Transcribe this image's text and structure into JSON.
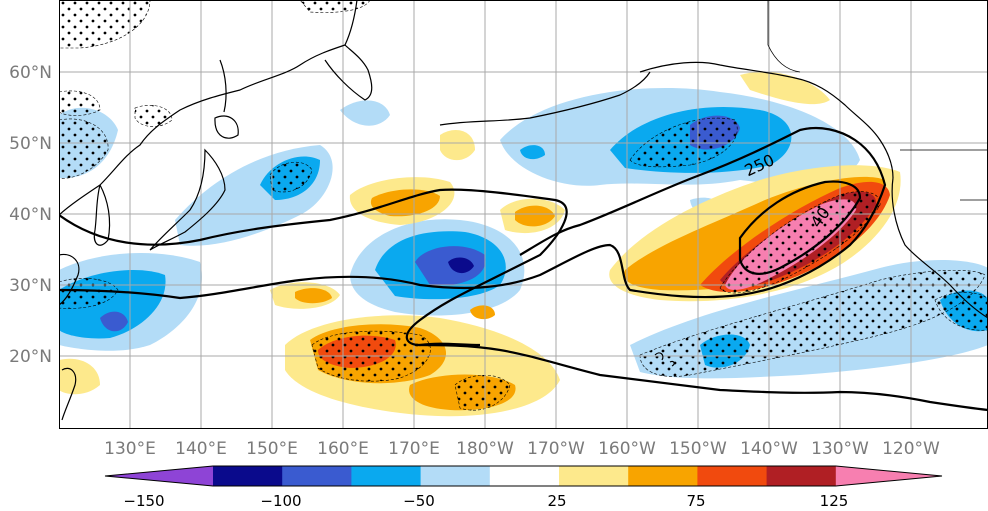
{
  "map": {
    "latitude_labels": [
      "60°N",
      "50°N",
      "40°N",
      "30°N",
      "20°N"
    ],
    "longitude_labels": [
      "130°E",
      "140°E",
      "150°E",
      "160°E",
      "170°E",
      "180°W",
      "170°W",
      "160°W",
      "150°W",
      "140°W",
      "130°W",
      "120°W"
    ],
    "contour_labels": [
      "250",
      "40"
    ]
  },
  "colorbar": {
    "tick_labels": [
      "−150",
      "−100",
      "−50",
      "25",
      "75",
      "125"
    ],
    "colors": [
      "#8e44d6",
      "#0a0a8c",
      "#3a5bd0",
      "#0aa9ef",
      "#b3dcf7",
      "#ffffff",
      "#fde98c",
      "#f8a400",
      "#f14a0e",
      "#b01f24",
      "#f77fb0"
    ]
  },
  "colors": {
    "land_outline": "#000000",
    "grid": "#a9a9a9",
    "ocean": "#ffffff"
  }
}
